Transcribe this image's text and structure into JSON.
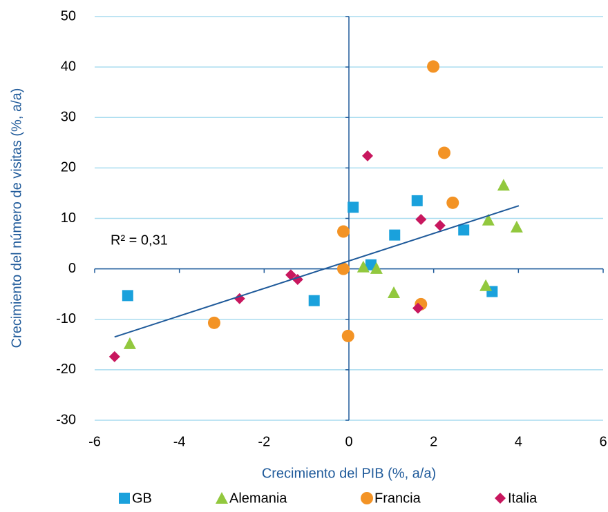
{
  "chart_data": {
    "type": "scatter",
    "x_label": "Crecimiento del PIB (%, a/a)",
    "y_label": "Crecimiento del número de visitas (%, a/a)",
    "annotation": "R² = 0,31",
    "xlim": [
      -6,
      6
    ],
    "xticks": [
      -6,
      -4,
      -2,
      0,
      2,
      4,
      6
    ],
    "ylim": [
      -30,
      50
    ],
    "yticks": [
      -30,
      -20,
      -10,
      0,
      10,
      20,
      30,
      40,
      50
    ],
    "grid": true,
    "legend": "bottom",
    "series": [
      {
        "name": "GB",
        "color": "#1aa1dc",
        "marker": "square",
        "x": [
          -5.22,
          -0.82,
          0.1,
          0.52,
          1.08,
          1.61,
          2.71,
          3.38
        ],
        "values": [
          -5.3,
          -6.3,
          12.2,
          0.8,
          6.7,
          13.5,
          7.7,
          -4.5
        ]
      },
      {
        "name": "Alemania",
        "color": "#92c83e",
        "marker": "triangle",
        "x": [
          -5.17,
          0.34,
          0.65,
          1.06,
          3.23,
          3.29,
          3.65,
          3.96
        ],
        "values": [
          -14.8,
          0.4,
          0.1,
          -4.7,
          -3.3,
          9.7,
          16.6,
          8.3
        ]
      },
      {
        "name": "Francia",
        "color": "#f39325",
        "marker": "circle",
        "x": [
          -3.18,
          -0.13,
          -0.13,
          -0.02,
          1.7,
          1.99,
          2.25,
          2.45
        ],
        "values": [
          -10.7,
          7.4,
          0,
          -13.3,
          -7.0,
          40.1,
          23.0,
          13.1
        ]
      },
      {
        "name": "Italia",
        "color": "#c8175e",
        "marker": "diamond",
        "x": [
          -5.53,
          -2.58,
          -1.37,
          -1.21,
          0.44,
          1.63,
          1.7,
          2.15
        ],
        "values": [
          -17.4,
          -5.9,
          -1.2,
          -2.1,
          22.4,
          -7.8,
          9.8,
          8.6
        ]
      }
    ],
    "trendline": {
      "color": "#1f5a9a",
      "x": [
        -5.53,
        4.01
      ],
      "values": [
        -13.5,
        12.5
      ]
    }
  }
}
